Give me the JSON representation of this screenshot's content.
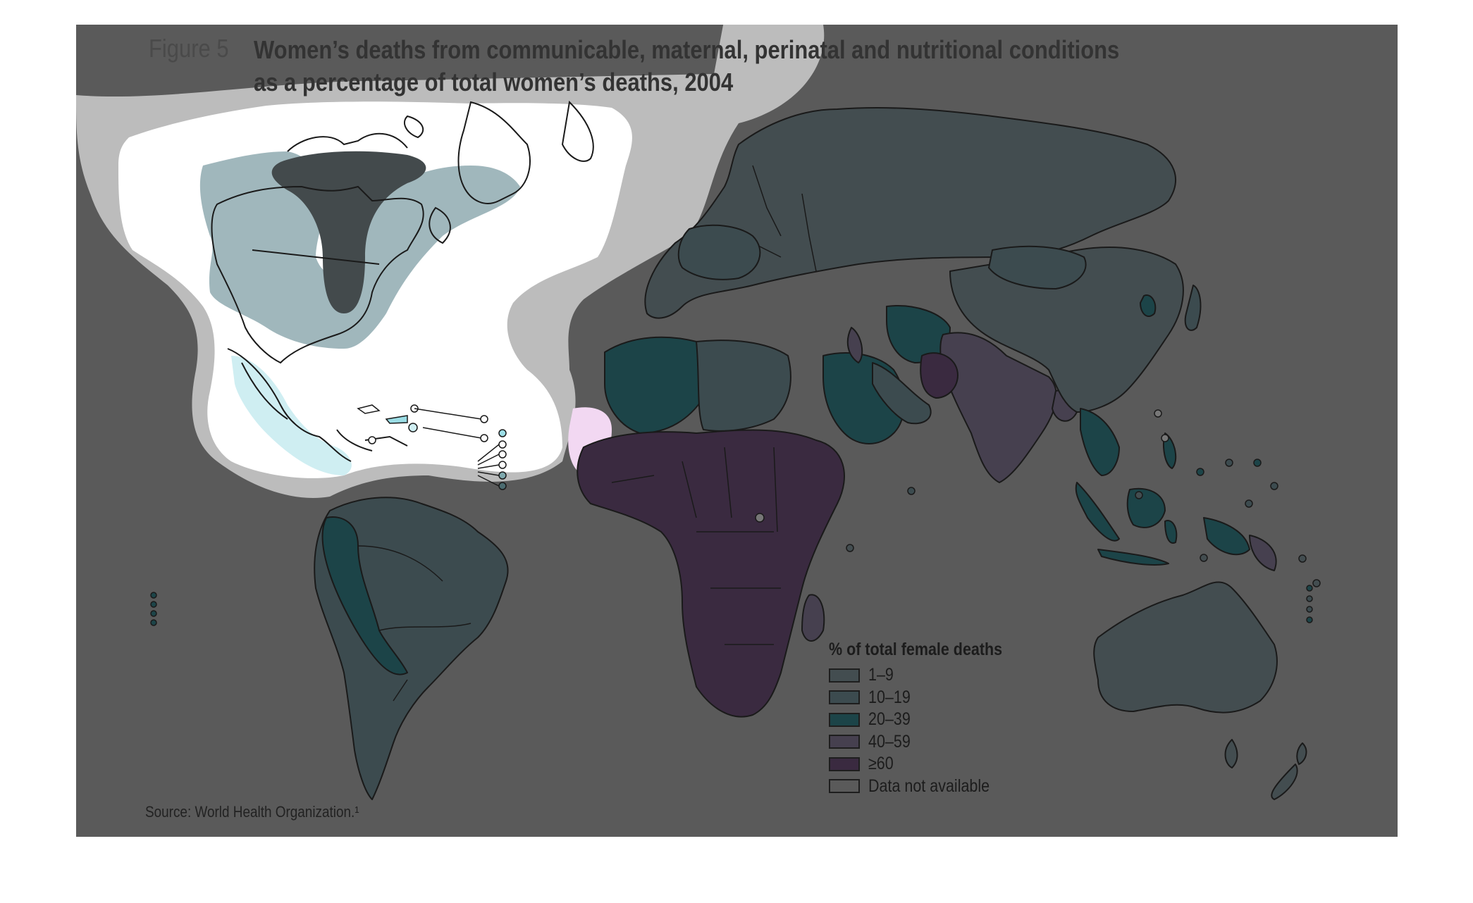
{
  "figure": {
    "label": "Figure 5",
    "title_line1": "Women’s deaths from communicable, maternal, perinatal and nutritional conditions",
    "title_line2": "as a percentage of total women’s deaths, 2004"
  },
  "legend": {
    "title": "% of total female deaths",
    "items": [
      {
        "label": "1–9",
        "color": "#434d50"
      },
      {
        "label": "10–19",
        "color": "#3c4b4f"
      },
      {
        "label": "20–39",
        "color": "#1c4448"
      },
      {
        "label": "40–59",
        "color": "#46404f"
      },
      {
        "label": "≥60",
        "color": "#3a2a40"
      },
      {
        "label": "Data not available",
        "color": "#5a5a5a"
      }
    ]
  },
  "source": "Source: World Health Organization.¹",
  "colors": {
    "background": "#5a5a5a",
    "overlay_white": "#ffffff",
    "overlay_halo": "#bcbcbc",
    "overlay_tint_teal": "#9bb3b8",
    "cat_1_9": "#434d50",
    "cat_10_19": "#3c4b4f",
    "cat_20_39": "#1c4448",
    "cat_40_59": "#46404f",
    "cat_60_plus": "#3a2a40"
  }
}
